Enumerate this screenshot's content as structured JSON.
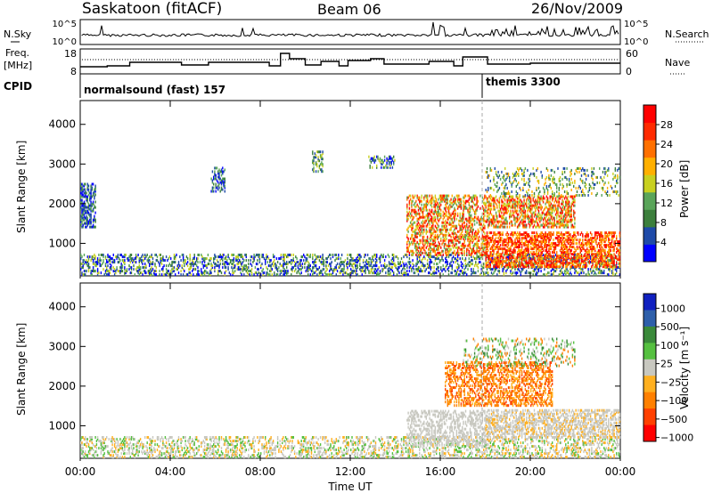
{
  "header": {
    "station": "Saskatoon (fitACF)",
    "beam": "Beam 06",
    "date": "26/Nov/2009"
  },
  "noise_panel": {
    "left_label": "N.Sky",
    "right_label": "N.Search",
    "left_ticks": [
      "10^5",
      "10^0"
    ],
    "right_ticks": [
      "10^5",
      "10^0"
    ]
  },
  "freq_panel": {
    "left_label_1": "Freq.",
    "left_label_2": "[MHz]",
    "right_label": "Nave",
    "left_ticks": [
      "18",
      "8"
    ],
    "right_ticks": [
      "60",
      "0"
    ]
  },
  "cpid": {
    "label": "CPID",
    "mode_1": "normalsound (fast) 157",
    "mode_2": "themis 3300"
  },
  "colors": {
    "power_scale": [
      "#0000ff",
      "#1e4aa8",
      "#3c7f3c",
      "#5aa55a",
      "#c8d020",
      "#ffb000",
      "#ff7000",
      "#ff2a00",
      "#ff0000"
    ],
    "velocity_scale": [
      "#1020c0",
      "#2e5faa",
      "#3a8a3a",
      "#55c040",
      "#c8c8c0",
      "#ffb020",
      "#ff8000",
      "#ff4000",
      "#ff0000"
    ]
  },
  "chart_data": [
    {
      "type": "heatmap",
      "title": "Power",
      "ylabel": "Slant Range [km]",
      "xlabel": "Time UT",
      "ylim": [
        180,
        4600
      ],
      "yticks": [
        "1000",
        "2000",
        "3000",
        "4000"
      ],
      "xticks": [
        "00:00",
        "04:00",
        "08:00",
        "12:00",
        "16:00",
        "20:00",
        "00:00"
      ],
      "colorbar_label": "Power [dB]",
      "colorbar_ticks": [
        "4",
        "8",
        "12",
        "16",
        "20",
        "24",
        "28"
      ]
    },
    {
      "type": "heatmap",
      "title": "Velocity",
      "ylabel": "Slant Range [km]",
      "xlabel": "Time UT",
      "ylim": [
        180,
        4600
      ],
      "yticks": [
        "1000",
        "2000",
        "3000",
        "4000"
      ],
      "xticks": [
        "00:00",
        "04:00",
        "08:00",
        "12:00",
        "16:00",
        "20:00",
        "00:00"
      ],
      "colorbar_label": "Velocity [m s⁻¹]",
      "colorbar_ticks": [
        "1000",
        "500",
        "100",
        "25",
        "−25",
        "−100",
        "−500",
        "−1000"
      ]
    }
  ]
}
